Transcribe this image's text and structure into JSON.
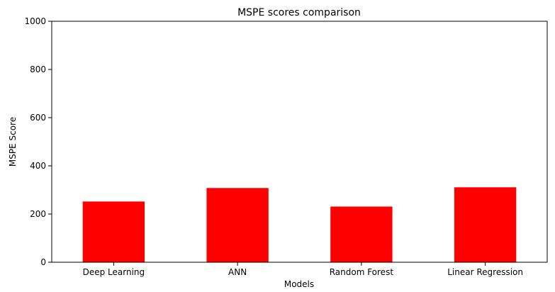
{
  "chart_data": {
    "type": "bar",
    "title": "MSPE scores comparison",
    "xlabel": "Models",
    "ylabel": "MSPE Score",
    "categories": [
      "Deep Learning",
      "ANN",
      "Random Forest",
      "Linear Regression"
    ],
    "values": [
      252,
      308,
      231,
      311
    ],
    "ylim": [
      0,
      1000
    ],
    "yticks": [
      "0",
      "200",
      "400",
      "600",
      "800",
      "1000"
    ],
    "grid": false,
    "bar_color": "#ff0000"
  }
}
